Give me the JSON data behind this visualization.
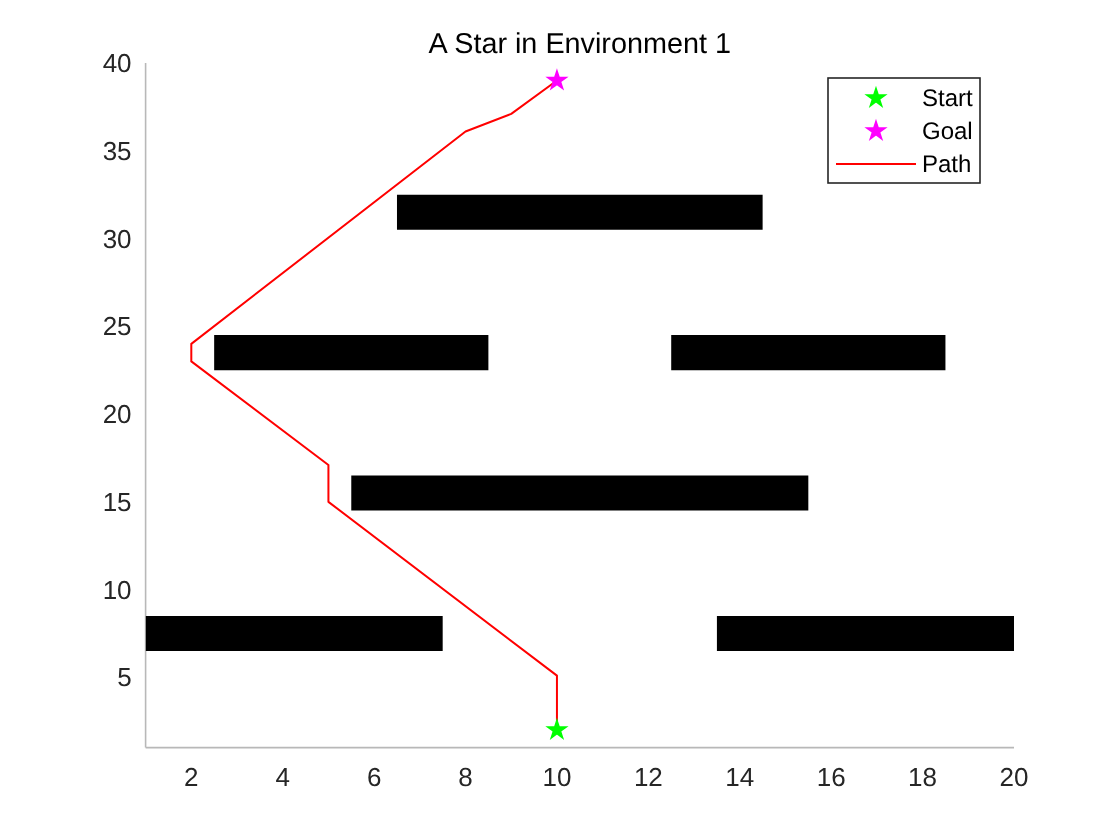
{
  "chart_data": {
    "type": "line",
    "title": "A Star in Environment 1",
    "xlim": [
      1,
      20
    ],
    "xticks": [
      2,
      4,
      6,
      8,
      10,
      12,
      14,
      16,
      18,
      20
    ],
    "ylim": [
      1,
      40
    ],
    "yticks": [
      5,
      10,
      15,
      20,
      25,
      30,
      35,
      40
    ],
    "legend": "top right",
    "series": [
      {
        "color": "#000000",
        "x": [
          1,
          7.5
        ],
        "values": [
          null,
          null
        ],
        "lower": [
          6.5,
          6.5
        ],
        "upper": [
          8.5,
          8.5
        ]
      },
      {
        "color": "#000000",
        "x": [
          13.5,
          20
        ],
        "values": [
          null,
          null
        ],
        "lower": [
          6.5,
          6.5
        ],
        "upper": [
          8.5,
          8.5
        ]
      },
      {
        "color": "#000000",
        "x": [
          5.5,
          15.5
        ],
        "values": [
          null,
          null
        ],
        "lower": [
          14.5,
          14.5
        ],
        "upper": [
          16.5,
          16.5
        ]
      },
      {
        "color": "#000000",
        "x": [
          2.5,
          8.5
        ],
        "values": [
          null,
          null
        ],
        "lower": [
          22.5,
          22.5
        ],
        "upper": [
          24.5,
          24.5
        ]
      },
      {
        "color": "#000000",
        "x": [
          12.5,
          18.5
        ],
        "values": [
          null,
          null
        ],
        "lower": [
          22.5,
          22.5
        ],
        "upper": [
          24.5,
          24.5
        ]
      },
      {
        "color": "#000000",
        "x": [
          6.5,
          14.5
        ],
        "values": [
          null,
          null
        ],
        "lower": [
          30.5,
          30.5
        ],
        "upper": [
          32.5,
          32.5
        ]
      },
      {
        "type": "scatter",
        "name": "Start",
        "color": "#00ff00",
        "marker": "star",
        "x": [
          10
        ],
        "values": [
          2
        ]
      },
      {
        "type": "scatter",
        "name": "Goal",
        "color": "#ff00ff",
        "marker": "star",
        "x": [
          10
        ],
        "values": [
          39
        ]
      },
      {
        "type": "line",
        "name": "Path",
        "color": "#ff0000",
        "x": [
          10,
          10,
          5,
          5,
          2,
          2,
          8,
          9,
          10
        ],
        "values": [
          2,
          5.1,
          15,
          17.1,
          23,
          24,
          36.1,
          37.1,
          39
        ]
      }
    ]
  }
}
